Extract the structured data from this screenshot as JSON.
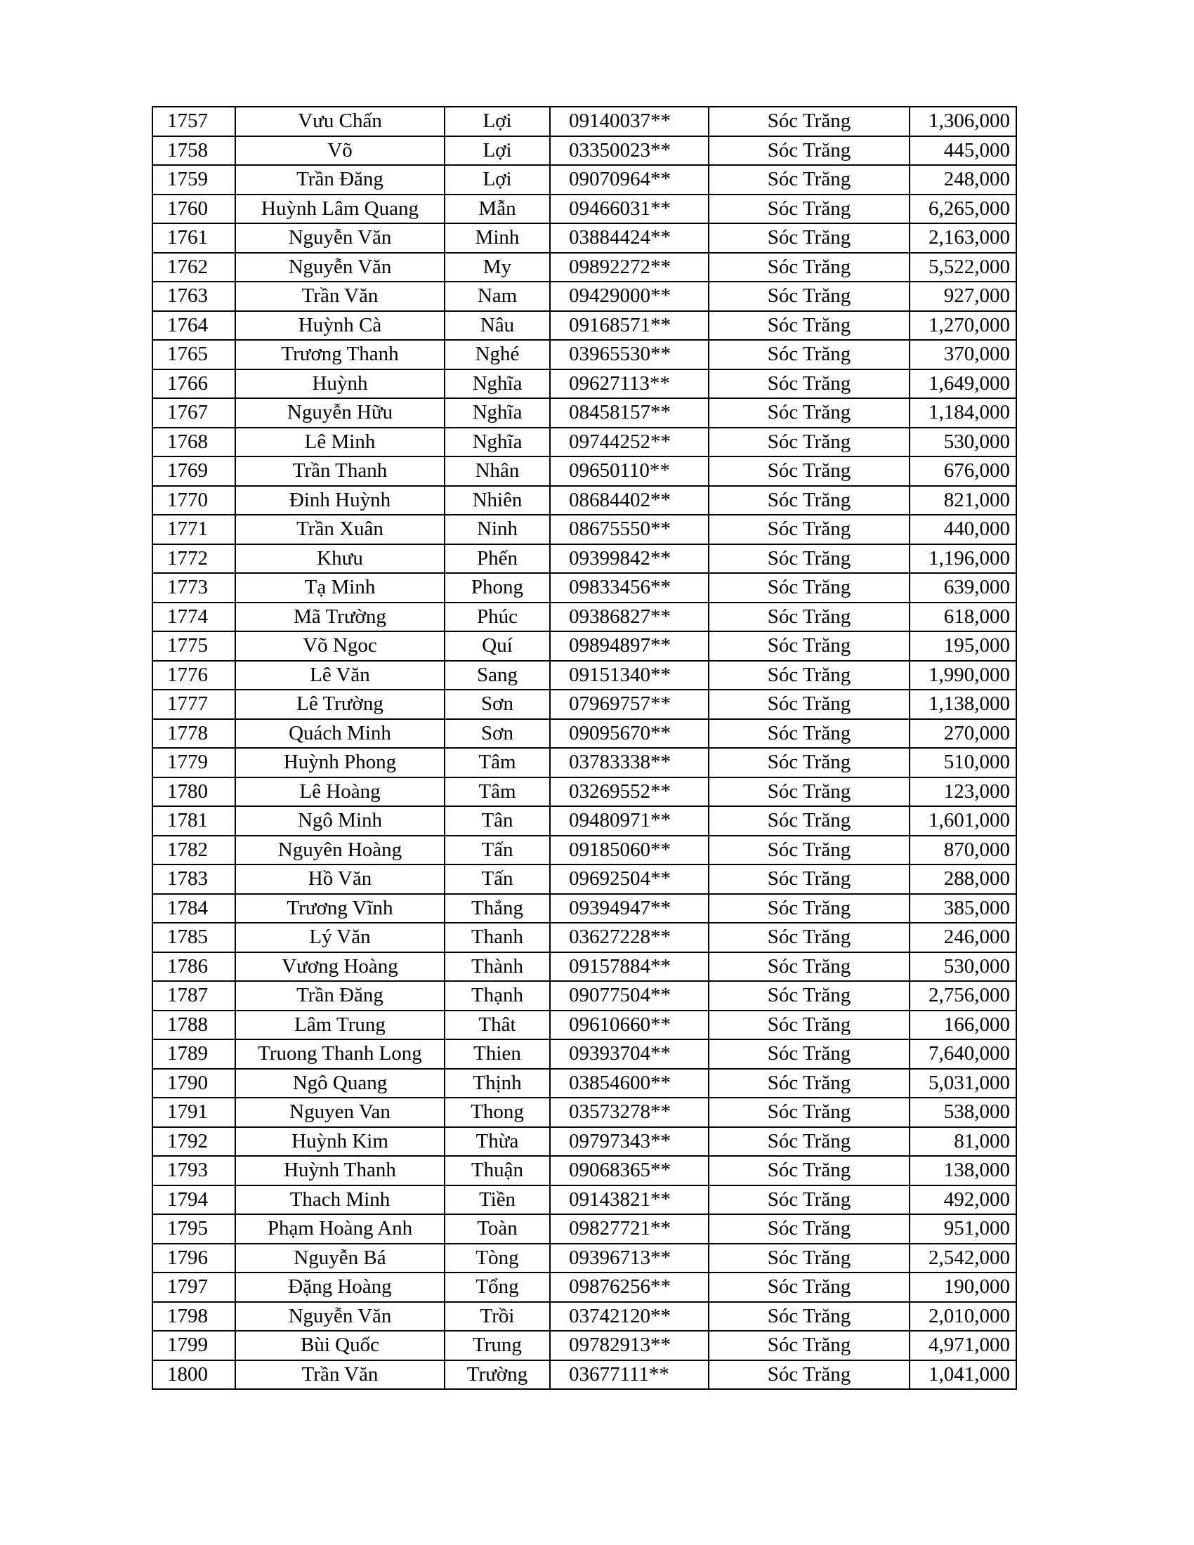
{
  "table": {
    "rows": [
      [
        "1757",
        "Vưu Chấn",
        "Lợi",
        "09140037**",
        "Sóc Trăng",
        "1,306,000"
      ],
      [
        "1758",
        "Võ",
        "Lợi",
        "03350023**",
        "Sóc Trăng",
        "445,000"
      ],
      [
        "1759",
        "Trần Đăng",
        "Lợi",
        "09070964**",
        "Sóc Trăng",
        "248,000"
      ],
      [
        "1760",
        "Huỳnh Lâm Quang",
        "Mẫn",
        "09466031**",
        "Sóc Trăng",
        "6,265,000"
      ],
      [
        "1761",
        "Nguyễn Văn",
        "Minh",
        "03884424**",
        "Sóc Trăng",
        "2,163,000"
      ],
      [
        "1762",
        "Nguyễn Văn",
        "My",
        "09892272**",
        "Sóc Trăng",
        "5,522,000"
      ],
      [
        "1763",
        "Trần Văn",
        "Nam",
        "09429000**",
        "Sóc Trăng",
        "927,000"
      ],
      [
        "1764",
        "Huỳnh Cà",
        "Nâu",
        "09168571**",
        "Sóc Trăng",
        "1,270,000"
      ],
      [
        "1765",
        "Trương Thanh",
        "Nghé",
        "03965530**",
        "Sóc Trăng",
        "370,000"
      ],
      [
        "1766",
        "Huỳnh",
        "Nghĩa",
        "09627113**",
        "Sóc Trăng",
        "1,649,000"
      ],
      [
        "1767",
        "Nguyễn Hữu",
        "Nghĩa",
        "08458157**",
        "Sóc Trăng",
        "1,184,000"
      ],
      [
        "1768",
        "Lê  Minh",
        "Nghĩa",
        "09744252**",
        "Sóc Trăng",
        "530,000"
      ],
      [
        "1769",
        "Trần Thanh",
        "Nhân",
        "09650110**",
        "Sóc Trăng",
        "676,000"
      ],
      [
        "1770",
        "Đinh Huỳnh",
        "Nhiên",
        "08684402**",
        "Sóc Trăng",
        "821,000"
      ],
      [
        "1771",
        "Trần Xuân",
        "Ninh",
        "08675550**",
        "Sóc Trăng",
        "440,000"
      ],
      [
        "1772",
        "Khưu",
        "Phến",
        "09399842**",
        "Sóc Trăng",
        "1,196,000"
      ],
      [
        "1773",
        "Tạ Minh",
        "Phong",
        "09833456**",
        "Sóc Trăng",
        "639,000"
      ],
      [
        "1774",
        "Mã Trường",
        "Phúc",
        "09386827**",
        "Sóc Trăng",
        "618,000"
      ],
      [
        "1775",
        "Võ Ngoc",
        "Quí",
        "09894897**",
        "Sóc Trăng",
        "195,000"
      ],
      [
        "1776",
        "Lê Văn",
        "Sang",
        "09151340**",
        "Sóc Trăng",
        "1,990,000"
      ],
      [
        "1777",
        "Lê Trường",
        "Sơn",
        "07969757**",
        "Sóc Trăng",
        "1,138,000"
      ],
      [
        "1778",
        "Quách Minh",
        "Sơn",
        "09095670**",
        "Sóc Trăng",
        "270,000"
      ],
      [
        "1779",
        "Huỳnh Phong",
        "Tâm",
        "03783338**",
        "Sóc Trăng",
        "510,000"
      ],
      [
        "1780",
        "Lê Hoàng",
        "Tâm",
        "03269552**",
        "Sóc Trăng",
        "123,000"
      ],
      [
        "1781",
        "Ngô Minh",
        "Tân",
        "09480971**",
        "Sóc Trăng",
        "1,601,000"
      ],
      [
        "1782",
        "Nguyên Hoàng",
        "Tấn",
        "09185060**",
        "Sóc Trăng",
        "870,000"
      ],
      [
        "1783",
        "Hồ Văn",
        "Tấn",
        "09692504**",
        "Sóc Trăng",
        "288,000"
      ],
      [
        "1784",
        "Trương Vĩnh",
        "Thắng",
        "09394947**",
        "Sóc Trăng",
        "385,000"
      ],
      [
        "1785",
        "Lý Văn",
        "Thanh",
        "03627228**",
        "Sóc Trăng",
        "246,000"
      ],
      [
        "1786",
        "Vương Hoàng",
        "Thành",
        "09157884**",
        "Sóc Trăng",
        "530,000"
      ],
      [
        "1787",
        "Trần Đăng",
        "Thạnh",
        "09077504**",
        "Sóc Trăng",
        "2,756,000"
      ],
      [
        "1788",
        "Lâm Trung",
        "Thât",
        "09610660**",
        "Sóc Trăng",
        "166,000"
      ],
      [
        "1789",
        "Truong Thanh Long",
        "Thien",
        "09393704**",
        "Sóc Trăng",
        "7,640,000"
      ],
      [
        "1790",
        "Ngô Quang",
        "Thịnh",
        "03854600**",
        "Sóc Trăng",
        "5,031,000"
      ],
      [
        "1791",
        "Nguyen Van",
        "Thong",
        "03573278**",
        "Sóc Trăng",
        "538,000"
      ],
      [
        "1792",
        "Huỳnh Kim",
        "Thừa",
        "09797343**",
        "Sóc Trăng",
        "81,000"
      ],
      [
        "1793",
        "Huỳnh Thanh",
        "Thuận",
        "09068365**",
        "Sóc Trăng",
        "138,000"
      ],
      [
        "1794",
        "Thach Minh",
        "Tiền",
        "09143821**",
        "Sóc Trăng",
        "492,000"
      ],
      [
        "1795",
        "Phạm Hoàng Anh",
        "Toàn",
        "09827721**",
        "Sóc Trăng",
        "951,000"
      ],
      [
        "1796",
        "Nguyễn Bá",
        "Tòng",
        "09396713**",
        "Sóc Trăng",
        "2,542,000"
      ],
      [
        "1797",
        "Đặng Hoàng",
        "Tổng",
        "09876256**",
        "Sóc Trăng",
        "190,000"
      ],
      [
        "1798",
        "Nguyễn Văn",
        "Trồi",
        "03742120**",
        "Sóc Trăng",
        "2,010,000"
      ],
      [
        "1799",
        "Bùi Quốc",
        "Trung",
        "09782913**",
        "Sóc Trăng",
        "4,971,000"
      ],
      [
        "1800",
        "Trần Văn",
        "Trường",
        "03677111**",
        "Sóc Trăng",
        "1,041,000"
      ]
    ]
  }
}
